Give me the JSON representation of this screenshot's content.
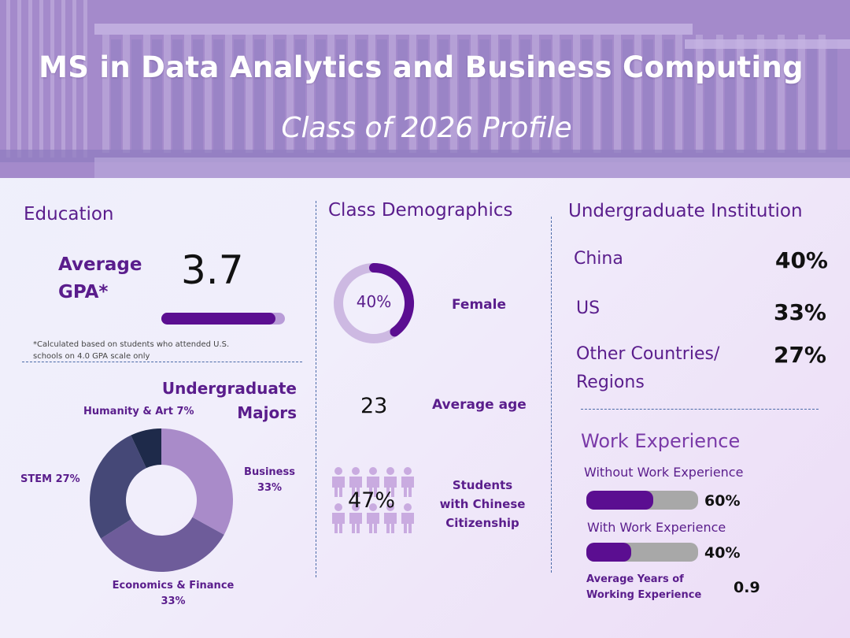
{
  "header": {
    "title": "MS in Data Analytics and Business Computing",
    "subtitle": "Class of 2026 Profile"
  },
  "education": {
    "title": "Education",
    "gpa_label_line1": "Average",
    "gpa_label_line2": "GPA*",
    "gpa_value": "3.7",
    "gpa_bar_fraction": 0.925,
    "footnote_line1": "*Calculated based on students who attended U.S.",
    "footnote_line2": "schools on 4.0 GPA scale only"
  },
  "majors": {
    "title_line1": "Undergraduate",
    "title_line2": "Majors",
    "humanity_label": "Humanity & Art 7%",
    "stem_label": "STEM 27%",
    "business_label_line1": "Business",
    "business_label_line2": "33%",
    "econ_label_line1": "Economics & Finance",
    "econ_label_line2": "33%"
  },
  "chart_data": {
    "type": "pie",
    "categories": [
      "Business",
      "Economics & Finance",
      "STEM",
      "Humanity & Art"
    ],
    "values": [
      33,
      33,
      27,
      7
    ],
    "unit": "%",
    "colors": [
      "#a98bc9",
      "#6e5c9a",
      "#454877",
      "#1e2a4a"
    ]
  },
  "demographics": {
    "title": "Class Demographics",
    "female_value": "40%",
    "female_fraction": 0.4,
    "female_label": "Female",
    "age_value": "23",
    "age_label": "Average age",
    "citizenship_value": "47%",
    "citizenship_label_line1": "Students",
    "citizenship_label_line2": "with Chinese",
    "citizenship_label_line3": "Citizenship"
  },
  "institution": {
    "title": "Undergraduate Institution",
    "rows": [
      {
        "label": "China",
        "value": "40%"
      },
      {
        "label": "US",
        "value": "33%"
      },
      {
        "label": "Other Countries/",
        "label_line2": "Regions",
        "value": "27%"
      }
    ]
  },
  "work": {
    "title": "Work Experience",
    "without_label": "Without Work Experience",
    "without_value": "60%",
    "without_fraction": 0.6,
    "with_label": "With Work Experience",
    "with_value": "40%",
    "with_fraction": 0.4,
    "years_label_line1": "Average Years of",
    "years_label_line2": "Working Experience",
    "years_value": "0.9"
  },
  "colors": {
    "accent": "#5b0e91",
    "text_purple": "#5a1d8c",
    "header_bg": "#a689cc",
    "bar_track": "#a8a8a8",
    "gpa_track": "#b99cd8",
    "female_ring": "#cdb9e2",
    "person_icon": "#c9abe0"
  },
  "icons": {
    "people_grid": "person-icon"
  }
}
